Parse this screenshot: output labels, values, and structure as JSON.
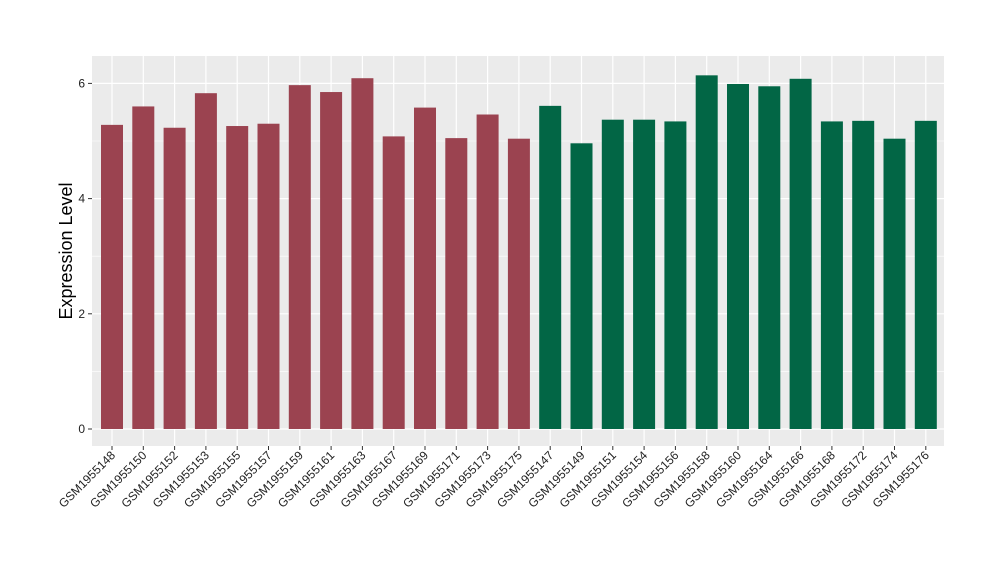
{
  "chart_data": {
    "type": "bar",
    "ylabel": "Expression Level",
    "xlabel": "",
    "ylim": [
      0,
      6.3
    ],
    "yticks": [
      0,
      2,
      4,
      6
    ],
    "grid": true,
    "panel_background": "#EBEBEB",
    "grid_color": "#FFFFFF",
    "categories": [
      "GSM1955148",
      "GSM1955150",
      "GSM1955152",
      "GSM1955153",
      "GSM1955155",
      "GSM1955157",
      "GSM1955159",
      "GSM1955161",
      "GSM1955163",
      "GSM1955167",
      "GSM1955169",
      "GSM1955171",
      "GSM1955173",
      "GSM1955175",
      "GSM1955147",
      "GSM1955149",
      "GSM1955151",
      "GSM1955154",
      "GSM1955156",
      "GSM1955158",
      "GSM1955160",
      "GSM1955164",
      "GSM1955166",
      "GSM1955168",
      "GSM1955172",
      "GSM1955174",
      "GSM1955176"
    ],
    "values": [
      5.28,
      5.6,
      5.23,
      5.83,
      5.26,
      5.3,
      5.97,
      5.85,
      6.09,
      5.08,
      5.58,
      5.05,
      5.46,
      5.04,
      5.61,
      4.96,
      5.37,
      5.37,
      5.34,
      6.14,
      5.99,
      5.95,
      6.08,
      5.34,
      5.35,
      5.04,
      5.35
    ],
    "groups": [
      0,
      0,
      0,
      0,
      0,
      0,
      0,
      0,
      0,
      0,
      0,
      0,
      0,
      0,
      1,
      1,
      1,
      1,
      1,
      1,
      1,
      1,
      1,
      1,
      1,
      1,
      1
    ],
    "group_colors": [
      "#9B4350",
      "#026645"
    ]
  }
}
